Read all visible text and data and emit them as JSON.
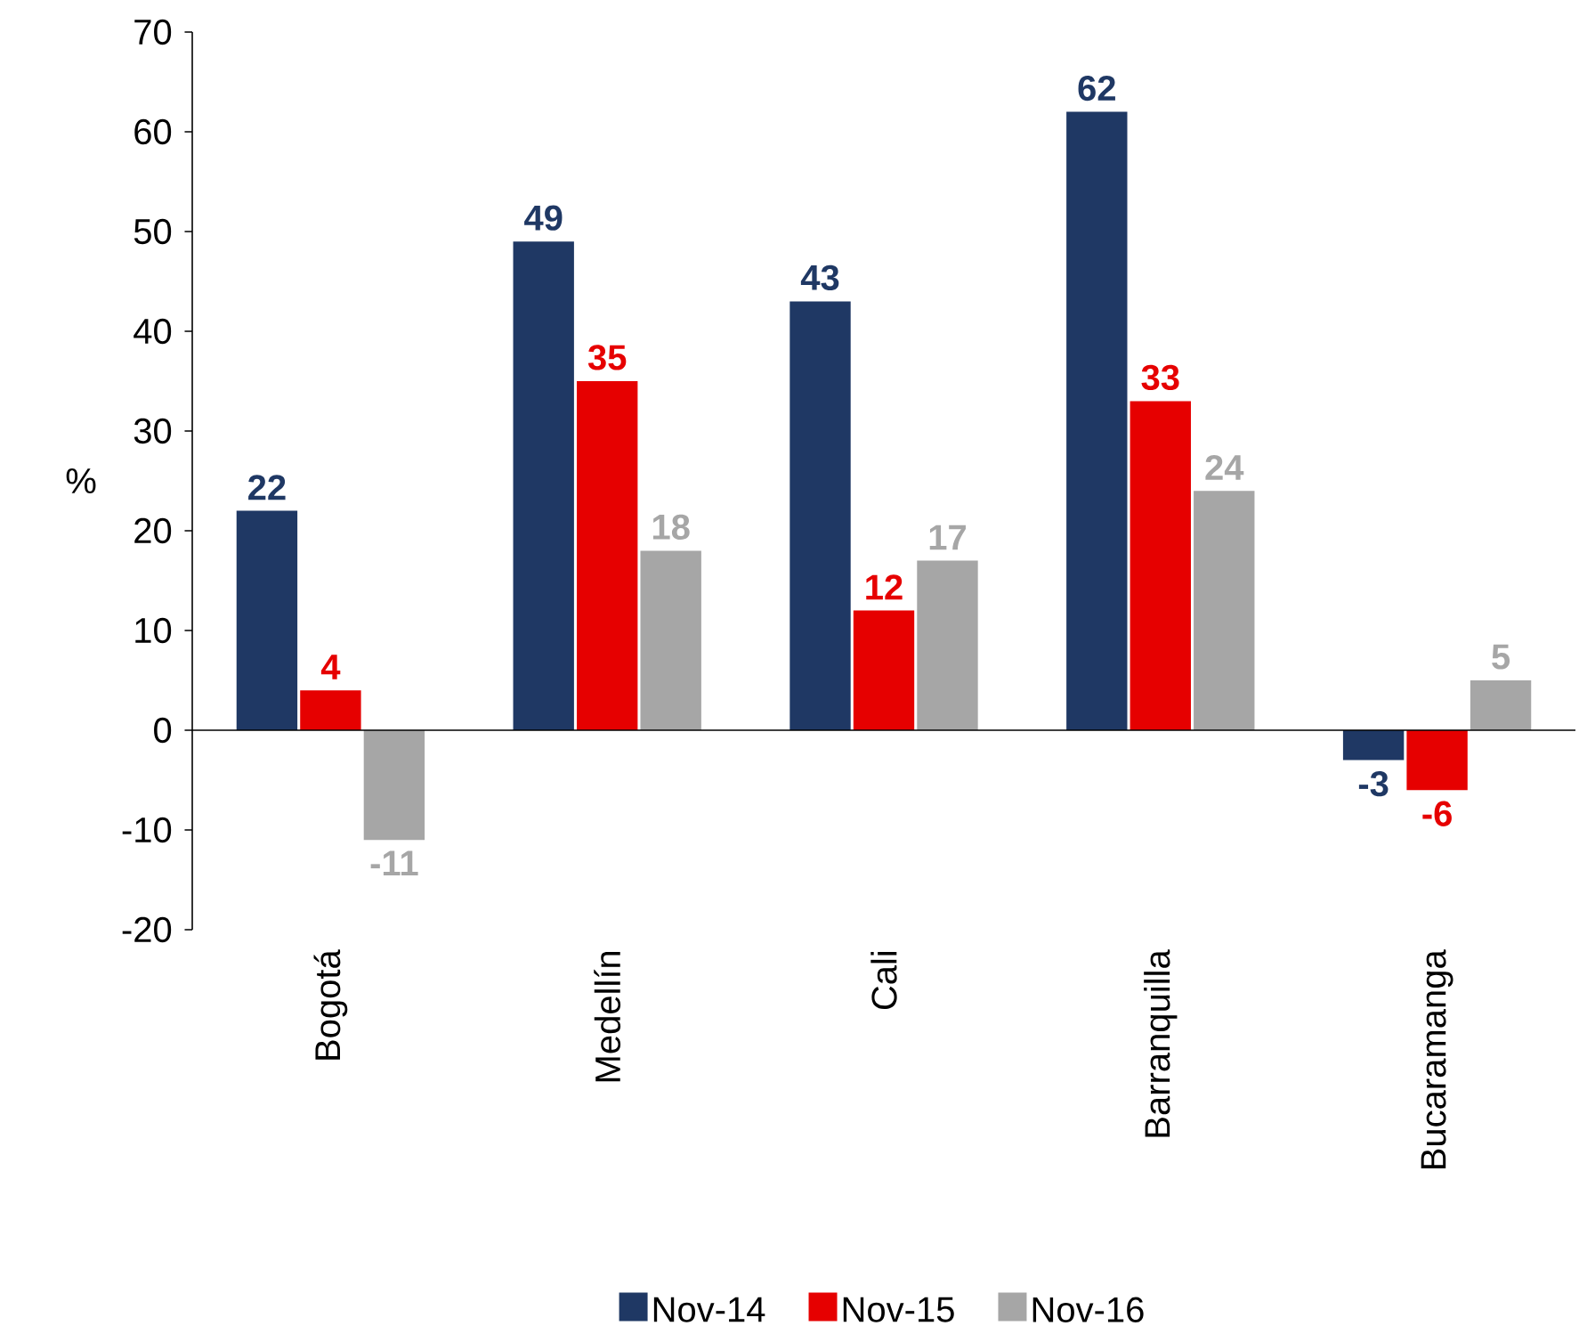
{
  "chart_data": {
    "type": "bar",
    "ylabel": "%",
    "categories": [
      "Bogotá",
      "Medellín",
      "Cali",
      "Barranquilla",
      "Bucaramanga"
    ],
    "series": [
      {
        "name": "Nov-14",
        "color": "#1f3864",
        "values": [
          22,
          49,
          43,
          62,
          -3
        ]
      },
      {
        "name": "Nov-15",
        "color": "#e60000",
        "values": [
          4,
          35,
          12,
          33,
          -6
        ]
      },
      {
        "name": "Nov-16",
        "color": "#a6a6a6",
        "values": [
          -11,
          18,
          17,
          24,
          5
        ]
      }
    ],
    "ylim": [
      -20,
      70
    ],
    "yticks": [
      -20,
      -10,
      0,
      10,
      20,
      30,
      40,
      50,
      60,
      70
    ],
    "data_labels": true,
    "ref_lines": [
      {
        "axis": "y",
        "value": 0,
        "color": "#000000"
      }
    ],
    "legend": "bottom",
    "grid": false
  }
}
